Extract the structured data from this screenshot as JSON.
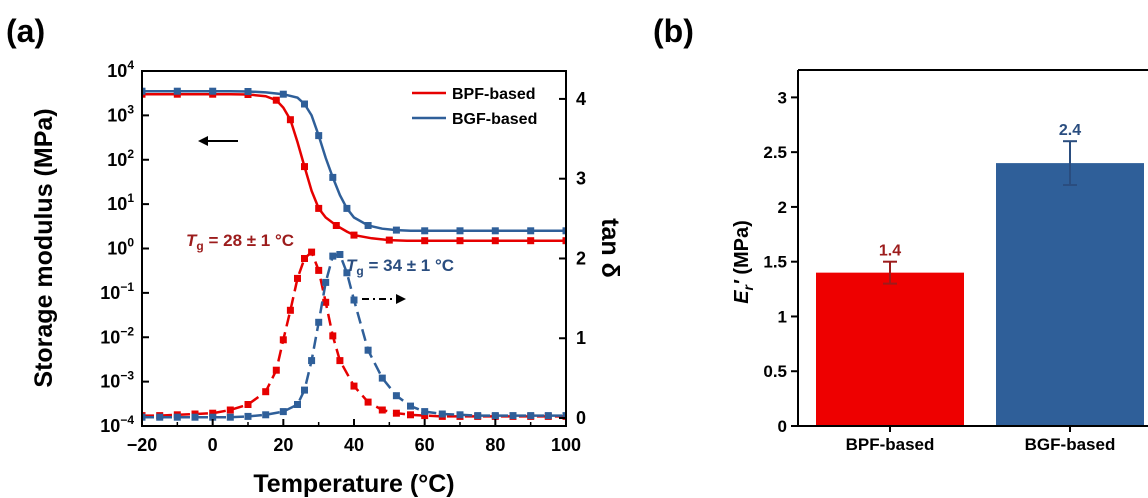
{
  "colors": {
    "red": "#e60000",
    "blue": "#2f5f99",
    "bar_red": "#ee0000",
    "bar_blue": "#2f5f99",
    "dark_red": "#9c1c1c",
    "dark_blue": "#2a4d7f"
  },
  "panel_a_label": "(a)",
  "panel_b_label": "(b)",
  "chart_data": [
    {
      "type": "line",
      "panel": "a",
      "xlabel": "Temperature (°C)",
      "ylabel": "Storage modulus (MPa)",
      "y2label": "tan δ",
      "xlim": [
        -20,
        100
      ],
      "ylim_log": [
        0.0001,
        10000
      ],
      "y2lim": [
        -0.1,
        4.35
      ],
      "xticks": [
        "−20",
        "0",
        "20",
        "40",
        "60",
        "80",
        "100"
      ],
      "yticks": [
        {
          "base": "10",
          "exp": "4"
        },
        {
          "base": "10",
          "exp": "3"
        },
        {
          "base": "10",
          "exp": "2"
        },
        {
          "base": "10",
          "exp": "1"
        },
        {
          "base": "10",
          "exp": "0"
        },
        {
          "base": "10",
          "exp": "−1"
        },
        {
          "base": "10",
          "exp": "−2"
        },
        {
          "base": "10",
          "exp": "−3"
        },
        {
          "base": "10",
          "exp": "−4"
        }
      ],
      "y2ticks": [
        "0",
        "1",
        "2",
        "3",
        "4"
      ],
      "legend_position": "top-right",
      "legend": [
        "BPF-based",
        "BGF-based"
      ],
      "annotations": {
        "tg_bpf": {
          "sym": "T",
          "sub": "g",
          "rest": " = 28 ± 1 °C"
        },
        "tg_bgf": {
          "sym": "T",
          "sub": "g",
          "rest": " = 34 ± 1 °C"
        }
      },
      "series": [
        {
          "name": "BPF-based",
          "axis": "left",
          "style": "solid",
          "color": "#e60000",
          "x": [
            -20,
            -15,
            -10,
            -5,
            0,
            5,
            10,
            15,
            18,
            20,
            22,
            24,
            26,
            28,
            30,
            32,
            35,
            38,
            40,
            45,
            50,
            55,
            60,
            65,
            70,
            75,
            80,
            85,
            90,
            95,
            100
          ],
          "y": [
            3000,
            3000,
            3000,
            3000,
            3000,
            3000,
            2950,
            2700,
            2200,
            1500,
            800,
            250,
            70,
            20,
            8,
            5,
            3.3,
            2.4,
            2.0,
            1.7,
            1.55,
            1.5,
            1.5,
            1.5,
            1.5,
            1.5,
            1.5,
            1.5,
            1.5,
            1.5,
            1.5
          ]
        },
        {
          "name": "BGF-based",
          "axis": "left",
          "style": "solid",
          "color": "#2f5f99",
          "x": [
            -20,
            -15,
            -10,
            -5,
            0,
            5,
            10,
            15,
            20,
            24,
            26,
            28,
            30,
            32,
            34,
            36,
            38,
            40,
            44,
            48,
            52,
            56,
            60,
            65,
            70,
            75,
            80,
            85,
            90,
            95,
            100
          ],
          "y": [
            3500,
            3500,
            3500,
            3500,
            3500,
            3500,
            3450,
            3300,
            3000,
            2500,
            1800,
            1000,
            350,
            110,
            40,
            16,
            8,
            5,
            3.3,
            2.8,
            2.6,
            2.5,
            2.5,
            2.5,
            2.5,
            2.5,
            2.5,
            2.5,
            2.5,
            2.5,
            2.5
          ]
        },
        {
          "name": "BPF tan δ",
          "axis": "right",
          "style": "dashed",
          "color": "#e60000",
          "x": [
            -20,
            -15,
            -10,
            -5,
            0,
            5,
            10,
            15,
            18,
            20,
            22,
            24,
            26,
            28,
            30,
            32,
            34,
            36,
            40,
            44,
            48,
            52,
            56,
            60,
            65,
            70,
            75,
            80,
            85,
            90,
            95,
            100
          ],
          "y": [
            0.03,
            0.03,
            0.04,
            0.05,
            0.06,
            0.1,
            0.17,
            0.33,
            0.6,
            0.98,
            1.35,
            1.75,
            2.0,
            2.08,
            1.85,
            1.45,
            1.03,
            0.72,
            0.4,
            0.2,
            0.1,
            0.06,
            0.04,
            0.03,
            0.02,
            0.02,
            0.02,
            0.02,
            0.02,
            0.02,
            0.02,
            0.02
          ]
        },
        {
          "name": "BGF tan δ",
          "axis": "right",
          "style": "dashed",
          "color": "#2f5f99",
          "x": [
            -20,
            -15,
            -10,
            -5,
            0,
            5,
            10,
            15,
            20,
            24,
            26,
            28,
            30,
            32,
            34,
            36,
            38,
            40,
            44,
            48,
            52,
            56,
            60,
            65,
            70,
            75,
            80,
            85,
            90,
            95,
            100
          ],
          "y": [
            0.01,
            0.01,
            0.01,
            0.01,
            0.01,
            0.01,
            0.02,
            0.04,
            0.08,
            0.17,
            0.35,
            0.72,
            1.2,
            1.7,
            2.03,
            2.05,
            1.82,
            1.48,
            0.85,
            0.5,
            0.28,
            0.15,
            0.08,
            0.05,
            0.04,
            0.03,
            0.03,
            0.03,
            0.03,
            0.03,
            0.03
          ]
        }
      ]
    },
    {
      "type": "bar",
      "panel": "b",
      "categories": [
        "BPF-based",
        "BGF-based"
      ],
      "values": [
        1.4,
        2.4
      ],
      "errors": [
        0.1,
        0.2
      ],
      "value_labels": [
        "1.4",
        "2.4"
      ],
      "ylim": [
        0,
        3.25
      ],
      "yticks": [
        "0",
        "0.5",
        "1",
        "1.5",
        "2",
        "2.5",
        "3"
      ],
      "ylabel": {
        "main": "E",
        "sub": "r",
        "prime": "′",
        "unit": " (MPa)"
      },
      "colors": [
        "#ee0000",
        "#2f5f99"
      ]
    }
  ]
}
